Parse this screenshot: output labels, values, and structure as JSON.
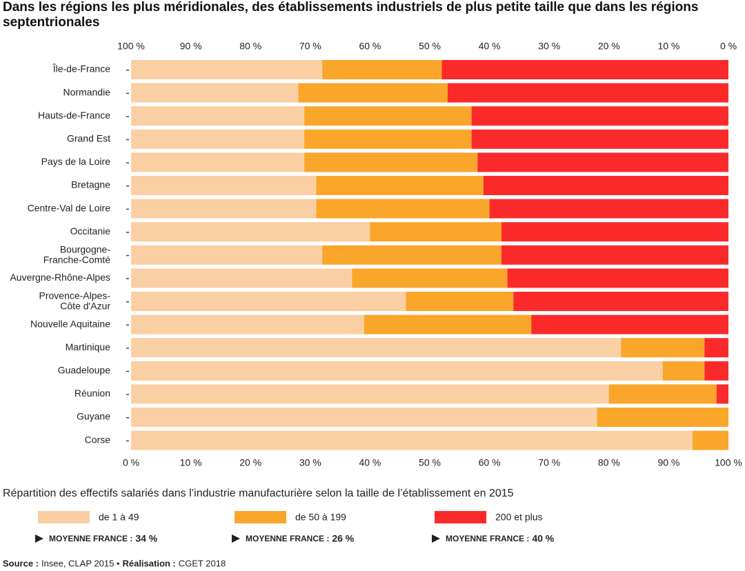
{
  "chart_data": {
    "type": "stacked_barh",
    "title": "Dans les régions les plus méridionales, des établissements industriels de plus petite taille que dans les régions septentrionales",
    "subtitle": "Répartition des effectifs salariés dans l’industrie manufacturière selon la taille de l’établissement en 2015",
    "categories": [
      "Île-de-France",
      "Normandie",
      "Hauts-de-France",
      "Grand Est",
      "Pays de la Loire",
      "Bretagne",
      "Centre-Val de Loire",
      "Occitanie",
      "Bourgogne-Franche-Comté",
      "Auvergne-Rhône-Alpes",
      "Provence-Alpes-Côte d'Azur",
      "Nouvelle Aquitaine",
      "Martinique",
      "Guadeloupe",
      "Réunion",
      "Guyane",
      "Corse"
    ],
    "series": [
      {
        "name": "de 1 à 49",
        "color": "#f9cfa3",
        "average_label": "34 %",
        "values": [
          32,
          28,
          29,
          29,
          29,
          31,
          31,
          40,
          32,
          37,
          46,
          39,
          82,
          89,
          80,
          78,
          94
        ]
      },
      {
        "name": "de 50 à 199",
        "color": "#f9a62b",
        "average_label": "26 %",
        "values": [
          20,
          25,
          28,
          28,
          29,
          28,
          29,
          22,
          30,
          26,
          18,
          28,
          14,
          7,
          18,
          22,
          6
        ]
      },
      {
        "name": "200 et plus",
        "color": "#fb2a2a",
        "average_label": "40 %",
        "values": [
          48,
          47,
          43,
          43,
          42,
          41,
          40,
          38,
          38,
          37,
          36,
          33,
          4,
          4,
          2,
          0,
          0
        ]
      }
    ],
    "average_prefix": "MOYENNE FRANCE :",
    "xlim": [
      0,
      100
    ],
    "xticks": [
      {
        "value": 0,
        "label": "0 %"
      },
      {
        "value": 10,
        "label": "10 %"
      },
      {
        "value": 20,
        "label": "20 %"
      },
      {
        "value": 30,
        "label": "30 %"
      },
      {
        "value": 40,
        "label": "40 %"
      },
      {
        "value": 50,
        "label": "50 %"
      },
      {
        "value": 60,
        "label": "60 %"
      },
      {
        "value": 70,
        "label": "70 %"
      },
      {
        "value": 80,
        "label": "80 %"
      },
      {
        "value": 90,
        "label": "90 %"
      },
      {
        "value": 100,
        "label": "100 %"
      }
    ],
    "x2lim": [
      100,
      0
    ],
    "x2ticks": [
      {
        "value": 100,
        "label": "100 %"
      },
      {
        "value": 90,
        "label": "90 %"
      },
      {
        "value": 80,
        "label": "80 %"
      },
      {
        "value": 70,
        "label": "70 %"
      },
      {
        "value": 60,
        "label": "60 %"
      },
      {
        "value": 50,
        "label": "50 %"
      },
      {
        "value": 40,
        "label": "40 %"
      },
      {
        "value": 30,
        "label": "30 %"
      },
      {
        "value": 20,
        "label": "20 %"
      },
      {
        "value": 10,
        "label": "10 %"
      },
      {
        "value": 0,
        "label": "0 %"
      }
    ],
    "source_label": "Source :",
    "source": "Insee, CLAP 2015 •",
    "credit_label": "Réalisation :",
    "credit": "CGET 2018"
  }
}
